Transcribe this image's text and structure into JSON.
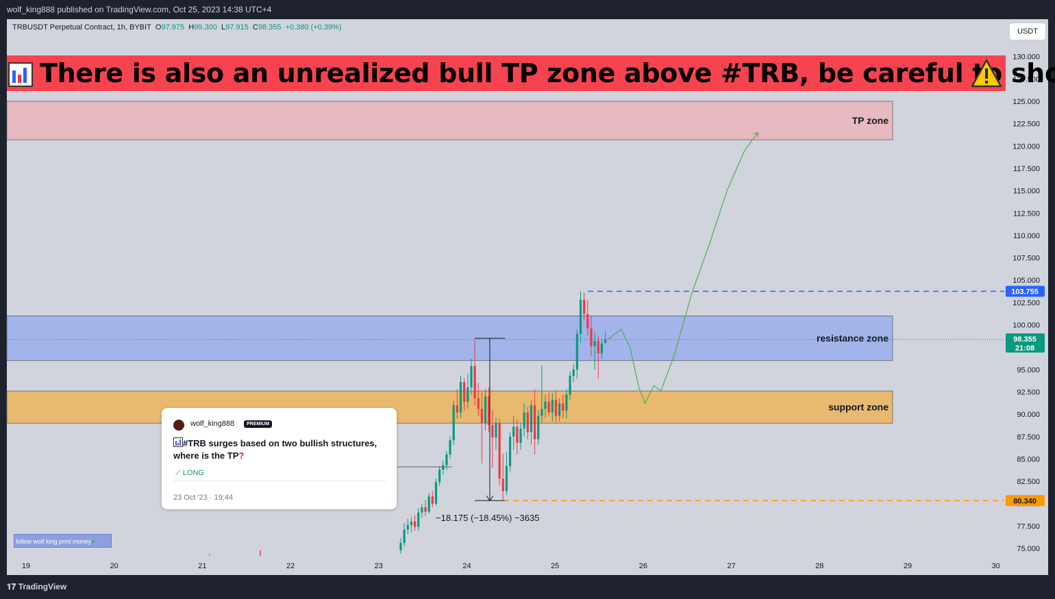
{
  "header": {
    "published": "wolf_king888 published on TradingView.com, Oct 25, 2023 14:38 UTC+4"
  },
  "symbol_bar": {
    "symbol": "TRBUSDT Perpetual Contract, 1h, BYBIT",
    "o_label": "O",
    "o": "97.975",
    "h_label": "H",
    "h": "99.300",
    "l_label": "L",
    "l": "97.915",
    "c_label": "C",
    "c": "98.355",
    "change": "+0.380 (+0.39%)"
  },
  "currency_button": "USDT",
  "banner": {
    "text": "There is also an unrealized bull TP zone above #TRB, be careful to short",
    "left_icon": "bar-chart-icon",
    "right_icon": "warning-icon"
  },
  "zones": {
    "tp": "TP zone",
    "resistance": "resistance zone",
    "support": "support zone"
  },
  "measure_label": "−18.175 (−18.45%) −3635",
  "price_labels": {
    "high": "103.755",
    "current": "98.355",
    "countdown": "21:08",
    "low": "80.340"
  },
  "idea_card": {
    "author": "wolf_king888",
    "badge": "PREMIUM",
    "title": "#TRB surges based on two bullish structures, where is the TP",
    "direction": "LONG",
    "date": "23 Oct '23 · 19:44"
  },
  "follow_note": "follow wolf king print money",
  "footer": {
    "brand": "TradingView"
  },
  "colors": {
    "up": "#089981",
    "down": "#f23645",
    "resistance": "#a3b4ea",
    "support": "#e8b96f",
    "tp": "#e7b9c0",
    "banner": "#f7434f"
  },
  "chart_data": {
    "type": "candlestick",
    "y_axis_ticks": [
      "130.000",
      "127.500",
      "125.000",
      "122.500",
      "120.000",
      "117.500",
      "115.000",
      "112.500",
      "110.000",
      "107.500",
      "105.000",
      "102.500",
      "100.000",
      "97.500",
      "95.000",
      "92.500",
      "90.000",
      "87.500",
      "85.000",
      "82.500",
      "80.000",
      "77.500",
      "75.000"
    ],
    "x_axis_ticks": [
      "19",
      "20",
      "21",
      "22",
      "23",
      "24",
      "25",
      "26",
      "27",
      "28",
      "29",
      "30"
    ],
    "ylim": [
      73.5,
      131
    ],
    "xlim": [
      18.9,
      30.6
    ],
    "zones": [
      {
        "name": "TP zone",
        "y_range": [
          120.7,
          125.0
        ]
      },
      {
        "name": "resistance zone",
        "y_range": [
          96.0,
          101.0
        ]
      },
      {
        "name": "support zone",
        "y_range": [
          89.0,
          92.6
        ]
      }
    ],
    "price_lines": {
      "high": 103.755,
      "current": 98.355,
      "low": 80.34
    },
    "candles": [
      {
        "x": 23.25,
        "o": 74.8,
        "h": 76.2,
        "l": 74.4,
        "c": 75.6
      },
      {
        "x": 23.29,
        "o": 75.6,
        "h": 77.8,
        "l": 75.2,
        "c": 77.1
      },
      {
        "x": 23.33,
        "o": 77.1,
        "h": 78.3,
        "l": 76.6,
        "c": 77.6
      },
      {
        "x": 23.37,
        "o": 77.6,
        "h": 78.5,
        "l": 76.8,
        "c": 78.0
      },
      {
        "x": 23.41,
        "o": 78.0,
        "h": 78.7,
        "l": 77.0,
        "c": 77.4
      },
      {
        "x": 23.45,
        "o": 77.4,
        "h": 79.5,
        "l": 77.0,
        "c": 79.0
      },
      {
        "x": 23.49,
        "o": 79.0,
        "h": 80.0,
        "l": 78.4,
        "c": 79.6
      },
      {
        "x": 23.53,
        "o": 79.6,
        "h": 80.4,
        "l": 78.6,
        "c": 79.1
      },
      {
        "x": 23.57,
        "o": 79.1,
        "h": 81.2,
        "l": 78.9,
        "c": 80.8
      },
      {
        "x": 23.61,
        "o": 80.8,
        "h": 81.4,
        "l": 79.6,
        "c": 80.0
      },
      {
        "x": 23.65,
        "o": 80.0,
        "h": 82.8,
        "l": 79.8,
        "c": 82.4
      },
      {
        "x": 23.69,
        "o": 82.4,
        "h": 84.2,
        "l": 82.0,
        "c": 83.8
      },
      {
        "x": 23.73,
        "o": 83.8,
        "h": 84.8,
        "l": 83.2,
        "c": 84.3
      },
      {
        "x": 23.77,
        "o": 84.3,
        "h": 85.9,
        "l": 83.8,
        "c": 85.5
      },
      {
        "x": 23.81,
        "o": 85.5,
        "h": 87.5,
        "l": 85.0,
        "c": 87.1
      },
      {
        "x": 23.85,
        "o": 87.1,
        "h": 91.5,
        "l": 86.6,
        "c": 91.0
      },
      {
        "x": 23.89,
        "o": 91.0,
        "h": 92.8,
        "l": 89.5,
        "c": 90.2
      },
      {
        "x": 23.93,
        "o": 90.2,
        "h": 94.3,
        "l": 89.6,
        "c": 93.6
      },
      {
        "x": 23.97,
        "o": 93.6,
        "h": 94.0,
        "l": 90.4,
        "c": 91.4
      },
      {
        "x": 24.01,
        "o": 91.4,
        "h": 94.5,
        "l": 90.6,
        "c": 93.0
      },
      {
        "x": 24.05,
        "o": 93.0,
        "h": 96.2,
        "l": 92.2,
        "c": 95.4
      },
      {
        "x": 24.09,
        "o": 95.4,
        "h": 98.3,
        "l": 91.0,
        "c": 91.8
      },
      {
        "x": 24.13,
        "o": 91.8,
        "h": 93.5,
        "l": 89.8,
        "c": 90.6
      },
      {
        "x": 24.17,
        "o": 90.6,
        "h": 92.5,
        "l": 84.5,
        "c": 89.0
      },
      {
        "x": 24.21,
        "o": 89.0,
        "h": 92.8,
        "l": 88.2,
        "c": 92.0
      },
      {
        "x": 24.25,
        "o": 92.0,
        "h": 93.0,
        "l": 88.0,
        "c": 88.8
      },
      {
        "x": 24.29,
        "o": 88.8,
        "h": 90.5,
        "l": 84.0,
        "c": 87.4
      },
      {
        "x": 24.33,
        "o": 87.4,
        "h": 89.6,
        "l": 86.0,
        "c": 89.0
      },
      {
        "x": 24.37,
        "o": 89.0,
        "h": 89.5,
        "l": 82.0,
        "c": 82.8
      },
      {
        "x": 24.41,
        "o": 82.8,
        "h": 85.6,
        "l": 80.34,
        "c": 81.4
      },
      {
        "x": 24.45,
        "o": 81.4,
        "h": 85.8,
        "l": 81.0,
        "c": 84.2
      },
      {
        "x": 24.49,
        "o": 84.2,
        "h": 88.0,
        "l": 83.6,
        "c": 87.5
      },
      {
        "x": 24.53,
        "o": 87.5,
        "h": 89.8,
        "l": 86.0,
        "c": 88.6
      },
      {
        "x": 24.57,
        "o": 88.6,
        "h": 89.4,
        "l": 85.5,
        "c": 86.8
      },
      {
        "x": 24.61,
        "o": 86.8,
        "h": 89.0,
        "l": 86.0,
        "c": 88.4
      },
      {
        "x": 24.65,
        "o": 88.4,
        "h": 91.2,
        "l": 87.5,
        "c": 90.2
      },
      {
        "x": 24.69,
        "o": 90.2,
        "h": 90.8,
        "l": 87.2,
        "c": 88.0
      },
      {
        "x": 24.73,
        "o": 88.0,
        "h": 91.5,
        "l": 86.6,
        "c": 91.0
      },
      {
        "x": 24.77,
        "o": 91.0,
        "h": 92.8,
        "l": 85.5,
        "c": 87.2
      },
      {
        "x": 24.81,
        "o": 87.2,
        "h": 90.5,
        "l": 86.6,
        "c": 89.8
      },
      {
        "x": 24.85,
        "o": 89.8,
        "h": 95.5,
        "l": 89.0,
        "c": 90.6
      },
      {
        "x": 24.89,
        "o": 90.6,
        "h": 92.2,
        "l": 89.6,
        "c": 91.4
      },
      {
        "x": 24.93,
        "o": 91.4,
        "h": 92.4,
        "l": 89.8,
        "c": 90.2
      },
      {
        "x": 24.97,
        "o": 90.2,
        "h": 92.4,
        "l": 89.2,
        "c": 91.6
      },
      {
        "x": 25.01,
        "o": 91.6,
        "h": 92.6,
        "l": 89.0,
        "c": 89.8
      },
      {
        "x": 25.05,
        "o": 89.8,
        "h": 91.8,
        "l": 89.2,
        "c": 91.2
      },
      {
        "x": 25.09,
        "o": 91.2,
        "h": 92.2,
        "l": 89.6,
        "c": 90.4
      },
      {
        "x": 25.13,
        "o": 90.4,
        "h": 92.8,
        "l": 89.5,
        "c": 92.2
      },
      {
        "x": 25.17,
        "o": 92.2,
        "h": 94.8,
        "l": 91.6,
        "c": 94.3
      },
      {
        "x": 25.21,
        "o": 94.3,
        "h": 95.6,
        "l": 93.6,
        "c": 95.0
      },
      {
        "x": 25.25,
        "o": 95.0,
        "h": 99.5,
        "l": 94.0,
        "c": 99.0
      },
      {
        "x": 25.29,
        "o": 99.0,
        "h": 103.755,
        "l": 98.0,
        "c": 102.8
      },
      {
        "x": 25.33,
        "o": 102.8,
        "h": 103.6,
        "l": 100.5,
        "c": 101.2
      },
      {
        "x": 25.37,
        "o": 101.2,
        "h": 102.8,
        "l": 98.8,
        "c": 99.6
      },
      {
        "x": 25.41,
        "o": 99.6,
        "h": 101.0,
        "l": 96.5,
        "c": 97.6
      },
      {
        "x": 25.45,
        "o": 97.6,
        "h": 99.2,
        "l": 95.0,
        "c": 98.2
      },
      {
        "x": 25.49,
        "o": 98.2,
        "h": 98.8,
        "l": 94.0,
        "c": 96.8
      },
      {
        "x": 25.53,
        "o": 96.8,
        "h": 98.4,
        "l": 96.2,
        "c": 97.9
      },
      {
        "x": 25.57,
        "o": 97.975,
        "h": 99.3,
        "l": 97.915,
        "c": 98.355
      }
    ],
    "projection": [
      {
        "x": 25.6,
        "y": 98.4
      },
      {
        "x": 25.75,
        "y": 99.5
      },
      {
        "x": 25.85,
        "y": 97.5
      },
      {
        "x": 25.95,
        "y": 93.0
      },
      {
        "x": 26.02,
        "y": 91.2
      },
      {
        "x": 26.12,
        "y": 93.2
      },
      {
        "x": 26.2,
        "y": 92.6
      },
      {
        "x": 26.35,
        "y": 96.5
      },
      {
        "x": 26.55,
        "y": 103.5
      },
      {
        "x": 26.75,
        "y": 109.0
      },
      {
        "x": 26.95,
        "y": 115.0
      },
      {
        "x": 27.15,
        "y": 119.5
      },
      {
        "x": 27.3,
        "y": 121.5
      }
    ],
    "measure": {
      "x": 24.26,
      "from": 98.5,
      "to": 80.34
    }
  }
}
